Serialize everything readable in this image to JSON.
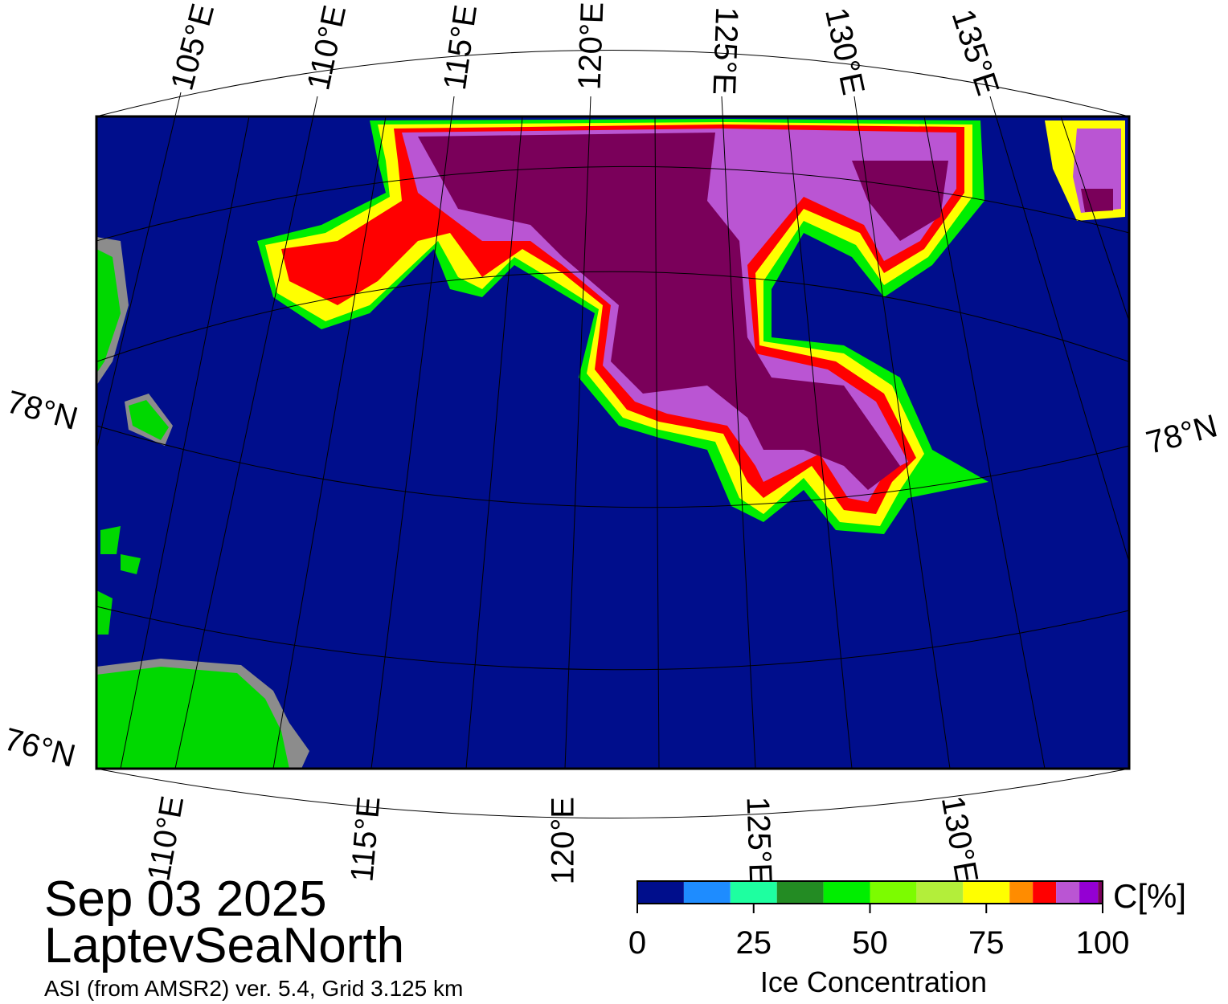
{
  "title": {
    "date": "Sep 03 2025",
    "region": "LaptevSeaNorth",
    "source": "ASI (from AMSR2) ver. 5.4,  Grid 3.125 km"
  },
  "map": {
    "top_labels": [
      "105°E",
      "110°E",
      "115°E",
      "120°E",
      "125°E",
      "130°E",
      "135°E"
    ],
    "bottom_labels": [
      "110°E",
      "115°E",
      "120°E",
      "125°E",
      "130°E"
    ],
    "left_labels": [
      "78°N",
      "76°N"
    ],
    "right_labels": [
      "78°N"
    ]
  },
  "colorbar": {
    "unit": "C[%]",
    "label": "Ice Concentration",
    "lim": [
      0,
      100
    ],
    "ticks": [
      0,
      25,
      50,
      75,
      100
    ],
    "bins": [
      0,
      10,
      20,
      30,
      40,
      50,
      60,
      70,
      80,
      85,
      90,
      95,
      99,
      100
    ],
    "colors": [
      "#000e8c",
      "#1e8cff",
      "#1effa0",
      "#238b23",
      "#00ee00",
      "#7cfc00",
      "#b3ee3a",
      "#ffff00",
      "#ff8c00",
      "#ff0000",
      "#ba55d3",
      "#9400d3",
      "#7a005a"
    ]
  }
}
